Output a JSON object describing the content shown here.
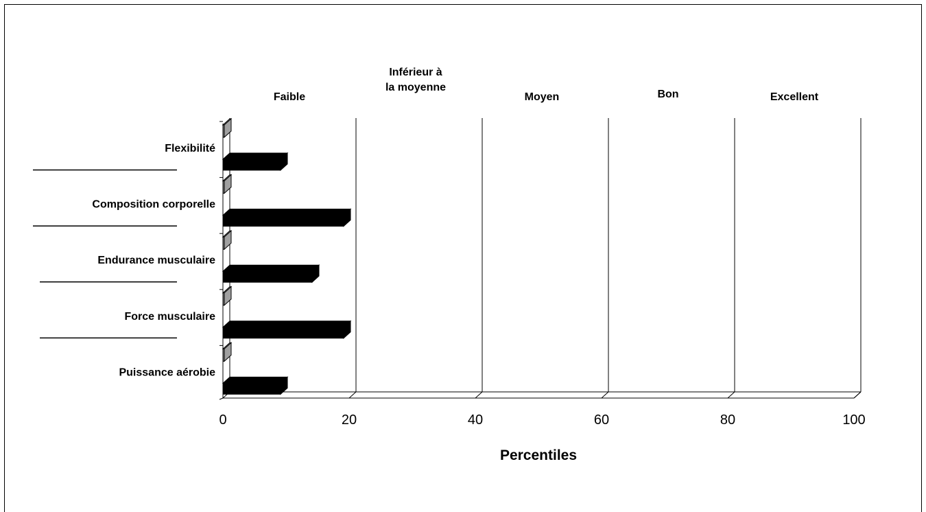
{
  "chart_data": {
    "type": "bar",
    "orientation": "horizontal",
    "xlabel": "Percentiles",
    "xlim": [
      0,
      100
    ],
    "xticks": [
      0,
      20,
      40,
      60,
      80,
      100
    ],
    "zones": [
      "Faible",
      "Inférieur à\nla moyenne",
      "Moyen",
      "Bon",
      "Excellent"
    ],
    "categories": [
      "Flexibilité",
      "Composition corporelle",
      "Endurance musculaire",
      "Force musculaire",
      "Puissance aérobie"
    ],
    "series": [
      {
        "values": [
          0,
          0,
          0,
          0,
          0
        ],
        "color": "#808080"
      },
      {
        "values": [
          10,
          20,
          15,
          20,
          10
        ],
        "color": "#000000"
      }
    ],
    "grid": true
  }
}
